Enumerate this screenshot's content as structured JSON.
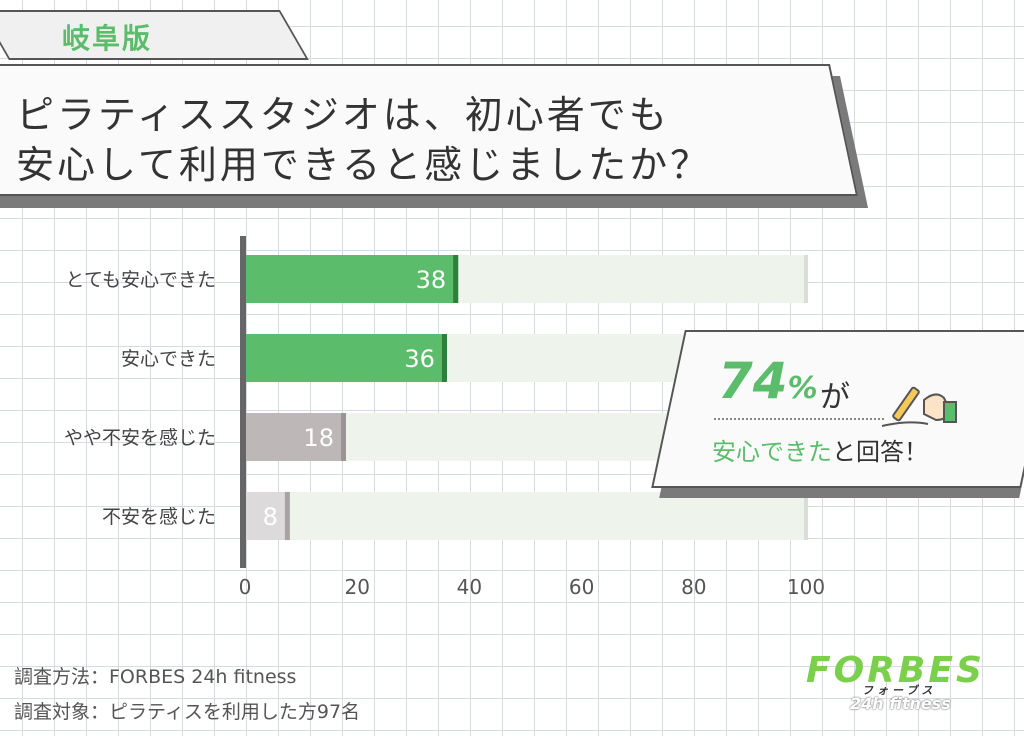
{
  "region_tag": "岐阜版",
  "title": {
    "line1": "ピラティススタジオは、初心者でも",
    "line2": "安心して利用できると感じましたか？"
  },
  "chart_data": {
    "type": "bar",
    "orientation": "horizontal",
    "categories": [
      "とても安心できた",
      "安心できた",
      "やや不安を感じた",
      "不安を感じた"
    ],
    "values": [
      38,
      36,
      18,
      8
    ],
    "value_labels": [
      "38",
      "36",
      "18",
      "8"
    ],
    "xlim": [
      0,
      100
    ],
    "xticks": [
      "0",
      "20",
      "40",
      "60",
      "80",
      "100"
    ],
    "bar_colors": [
      "#5bbd6b",
      "#5bbd6b",
      "#bdb7b7",
      "#dcdada"
    ],
    "bar_edge_colors": [
      "#2f7e3c",
      "#2f7e3c",
      "#9a9494",
      "#a8a4a4"
    ],
    "track_color": "#eef3ec",
    "grid": false
  },
  "callout": {
    "percent_number": "74",
    "percent_unit": "%",
    "percent_suffix": "が",
    "line2_highlight": "安心できた",
    "line2_rest": "と回答！",
    "icon": "pen-hand-icon"
  },
  "footer": {
    "method": "調査方法：FORBES 24h fitness",
    "target": "調査対象：ピラティスを利用した方97名"
  },
  "logo": {
    "main": "FORBES",
    "kana": "フォーブス",
    "sub": "24h fitness"
  },
  "colors": {
    "accent_green": "#5bbd6b",
    "logo_green": "#7ad04a",
    "text_dark": "#333333"
  }
}
